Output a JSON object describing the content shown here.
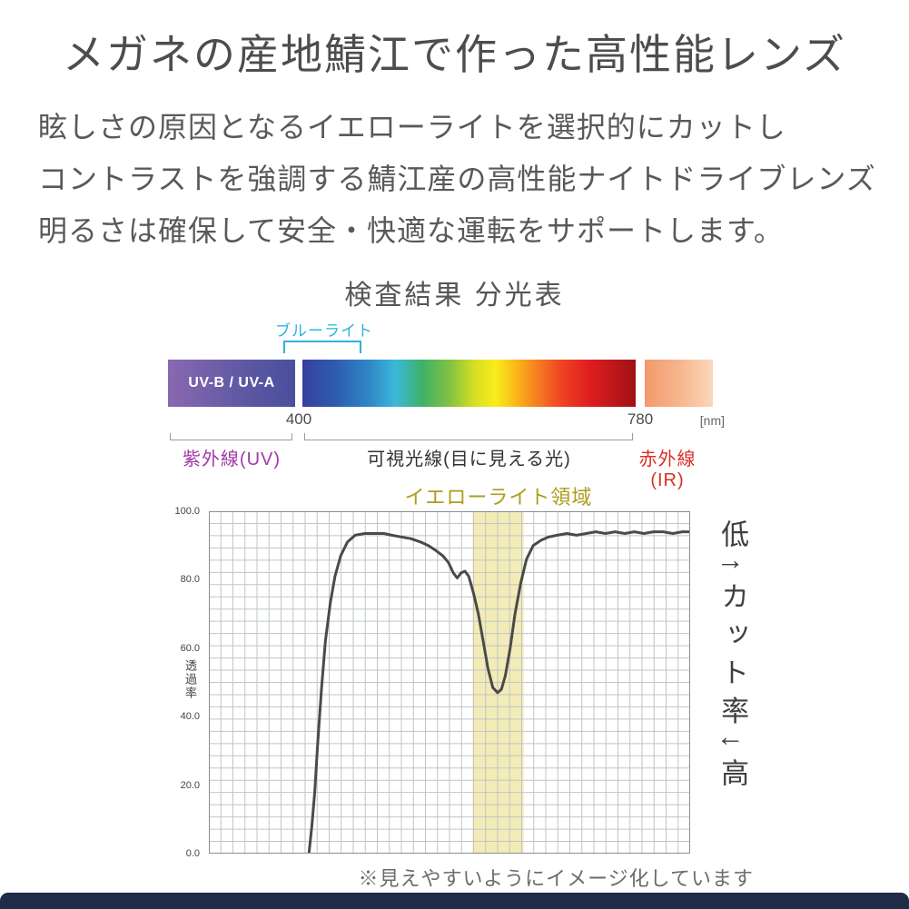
{
  "page": {
    "title": "メガネの産地鯖江で作った高性能レンズ",
    "description_lines": [
      "眩しさの原因となるイエローライトを選択的にカットし",
      "コントラストを強調する鯖江産の高性能ナイトドライブレンズ",
      "明るさは確保して安全・快適な運転をサポートします。"
    ],
    "note": "※見えやすいようにイメージ化しています",
    "footer_color": "#1e2c4a"
  },
  "spectrum": {
    "blue_light_label": "ブルーライト",
    "uv_band_label": "UV-B / UV-A",
    "tick_left": "400",
    "tick_right": "780",
    "unit": "[nm]",
    "uv_label": "紫外線(UV)",
    "visible_label": "可視光線(目に見える光)",
    "ir_label": "赤外線(IR)",
    "colors": {
      "blue_light_text": "#2bb3d9",
      "uv_text": "#a03aa5",
      "ir_text": "#d93025"
    }
  },
  "chart_data": {
    "type": "line",
    "title": "検査結果 分光表",
    "band_label": "イエローライト領域",
    "ylabel": "透過率",
    "right_axis_label": "低↑カット率↓高",
    "x_unit": "nm",
    "xlim": [
      300,
      800
    ],
    "ylim": [
      0,
      100
    ],
    "y_ticks": [
      "100.0",
      "80.0",
      "60.0",
      "40.0",
      "20.0",
      "0.0"
    ],
    "grid": true,
    "yellow_band": {
      "x_range": [
        574,
        627
      ],
      "color": "#e9dd7a"
    },
    "series": [
      {
        "name": "透過率",
        "x": [
          404,
          407,
          410,
          413,
          417,
          421,
          426,
          431,
          437,
          444,
          452,
          462,
          472,
          482,
          490,
          500,
          510,
          520,
          528,
          536,
          543,
          549,
          554,
          558,
          562,
          566,
          570,
          575,
          580,
          585,
          590,
          595,
          600,
          604,
          608,
          613,
          618,
          624,
          630,
          637,
          645,
          653,
          662,
          672,
          682,
          692,
          702,
          712,
          722,
          732,
          742,
          752,
          762,
          772,
          782,
          792,
          800
        ],
        "values": [
          0,
          8,
          18,
          32,
          48,
          62,
          73,
          81,
          87,
          91,
          93,
          93.5,
          93.5,
          93.5,
          93,
          92.5,
          92,
          91,
          90,
          88.5,
          87,
          85,
          82,
          80.5,
          82,
          82.5,
          81,
          76,
          70,
          62,
          54,
          48.5,
          47,
          48,
          52,
          60,
          70,
          79,
          86,
          90,
          91.5,
          92.5,
          93,
          93.5,
          93,
          93.5,
          94,
          93.5,
          94,
          93.5,
          94,
          93.5,
          94,
          94,
          93.5,
          94,
          94
        ]
      }
    ]
  }
}
